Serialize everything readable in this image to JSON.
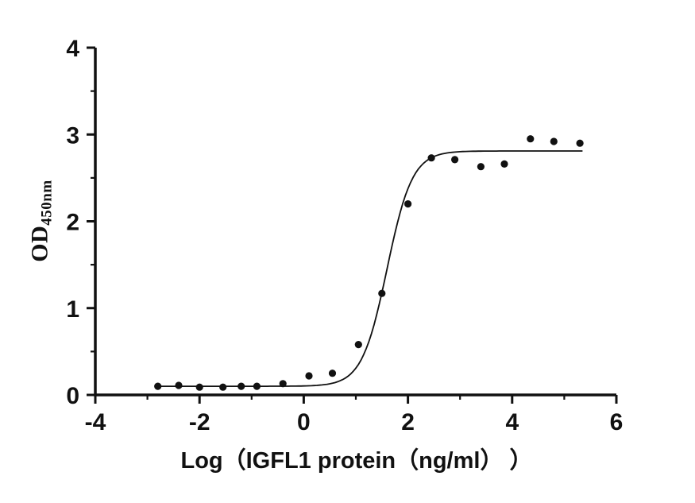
{
  "chart_data": {
    "type": "scatter",
    "title": "",
    "xlabel": "Log（IGFL1 protein（ng/ml） ）",
    "ylabel_main": "OD",
    "ylabel_sub": "450nm",
    "xlim": [
      -4,
      6
    ],
    "ylim": [
      0,
      4
    ],
    "x_major_ticks": [
      -4,
      -2,
      0,
      2,
      4,
      6
    ],
    "x_minor_step": 1,
    "y_major_ticks": [
      0,
      1,
      2,
      3,
      4
    ],
    "y_minor_step": 0.5,
    "grid": false,
    "legend": null,
    "point_color": "#111111",
    "line_color": "#111111",
    "points": [
      [
        -2.8,
        0.1
      ],
      [
        -2.4,
        0.11
      ],
      [
        -2.0,
        0.09
      ],
      [
        -1.55,
        0.09
      ],
      [
        -1.2,
        0.1
      ],
      [
        -0.9,
        0.1
      ],
      [
        -0.4,
        0.13
      ],
      [
        0.1,
        0.22
      ],
      [
        0.55,
        0.25
      ],
      [
        1.05,
        0.58
      ],
      [
        1.5,
        1.17
      ],
      [
        2.0,
        2.2
      ],
      [
        2.45,
        2.73
      ],
      [
        2.9,
        2.71
      ],
      [
        3.4,
        2.63
      ],
      [
        3.85,
        2.66
      ],
      [
        4.35,
        2.95
      ],
      [
        4.8,
        2.92
      ],
      [
        5.3,
        2.9
      ]
    ],
    "fit_curve": {
      "model": "4PL",
      "bottom": 0.1,
      "top": 2.81,
      "logEC50": 1.6,
      "hillslope": 1.8,
      "x_start": -2.85,
      "x_end": 5.35
    }
  }
}
